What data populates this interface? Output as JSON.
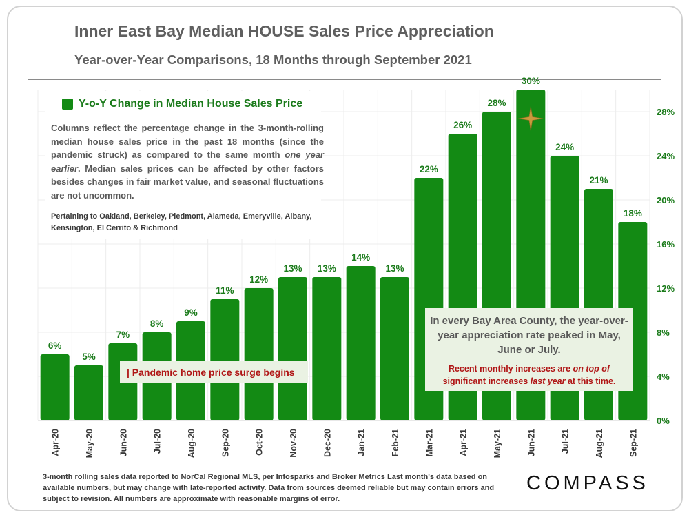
{
  "header": {
    "title": "Inner East Bay Median HOUSE Sales Price Appreciation",
    "subtitle": "Year-over-Year Comparisons, 18 Months through September 2021"
  },
  "legend": {
    "label": "Y-o-Y Change in Median House Sales Price",
    "description_parts": [
      "Columns reflect the percentage change in the 3-month-rolling median house sales price in the past 18 months (since the pandemic struck) as compared to the same month ",
      "one year earlier",
      ". Median sales prices can be affected by other factors besides changes in fair market value, and seasonal fluctuations are not uncommon."
    ],
    "areas": "Pertaining to Oakland, Berkeley, Piedmont, Alameda, Emeryville, Albany, Kensington, El Cerrito & Richmond"
  },
  "annotations": {
    "pandemic": "| Pandemic home price surge begins",
    "callout_main": "In every Bay Area County, the year-over-year appreciation rate peaked in May, June or July.",
    "callout_sub_parts": [
      "Recent monthly increases are ",
      "on top of",
      " significant increases ",
      "last year",
      " at this time."
    ]
  },
  "footer": {
    "text": "3-month rolling sales data reported to NorCal Regional MLS, per Infosparks and Broker Metrics Last month's data based on available numbers, but may change with late-reported activity. Data from sources deemed reliable but may contain errors and subject to revision. All numbers are approximate with reasonable margins of error."
  },
  "brand": {
    "logo_text": "COMPASS"
  },
  "colors": {
    "bar": "#138a14",
    "bar_label": "#1b7b1b",
    "axis_label": "#1b7b1b",
    "highlight": "#b01616",
    "callout_bg": "#eaf2e3"
  },
  "chart_data": {
    "type": "bar",
    "title": "Inner East Bay Median HOUSE Sales Price Appreciation",
    "subtitle": "Year-over-Year Comparisons, 18 Months through September 2021",
    "xlabel": "",
    "ylabel": "",
    "ylim": [
      0,
      30
    ],
    "y_ticks": [
      0,
      4,
      8,
      12,
      16,
      20,
      24,
      28
    ],
    "y_tick_labels": [
      "0%",
      "4%",
      "8%",
      "12%",
      "16%",
      "20%",
      "24%",
      "28%"
    ],
    "y_axis_side": "right",
    "grid": true,
    "categories": [
      "Apr-20",
      "May-20",
      "Jun-20",
      "Jul-20",
      "Aug-20",
      "Sep-20",
      "Oct-20",
      "Nov-20",
      "Dec-20",
      "Jan-21",
      "Feb-21",
      "Mar-21",
      "Apr-21",
      "May-21",
      "Jun-21",
      "Jul-21",
      "Aug-21",
      "Sep-21"
    ],
    "values": [
      6,
      5,
      7,
      8,
      9,
      11,
      12,
      13,
      13,
      14,
      13,
      22,
      26,
      28,
      30,
      24,
      21,
      18
    ],
    "data_labels": [
      "6%",
      "5%",
      "7%",
      "8%",
      "9%",
      "11%",
      "12%",
      "13%",
      "13%",
      "14%",
      "13%",
      "22%",
      "26%",
      "28%",
      "30%",
      "24%",
      "21%",
      "18%"
    ],
    "series_name": "Y-o-Y Change in Median House Sales Price",
    "highlight_category": "Jun-21"
  }
}
